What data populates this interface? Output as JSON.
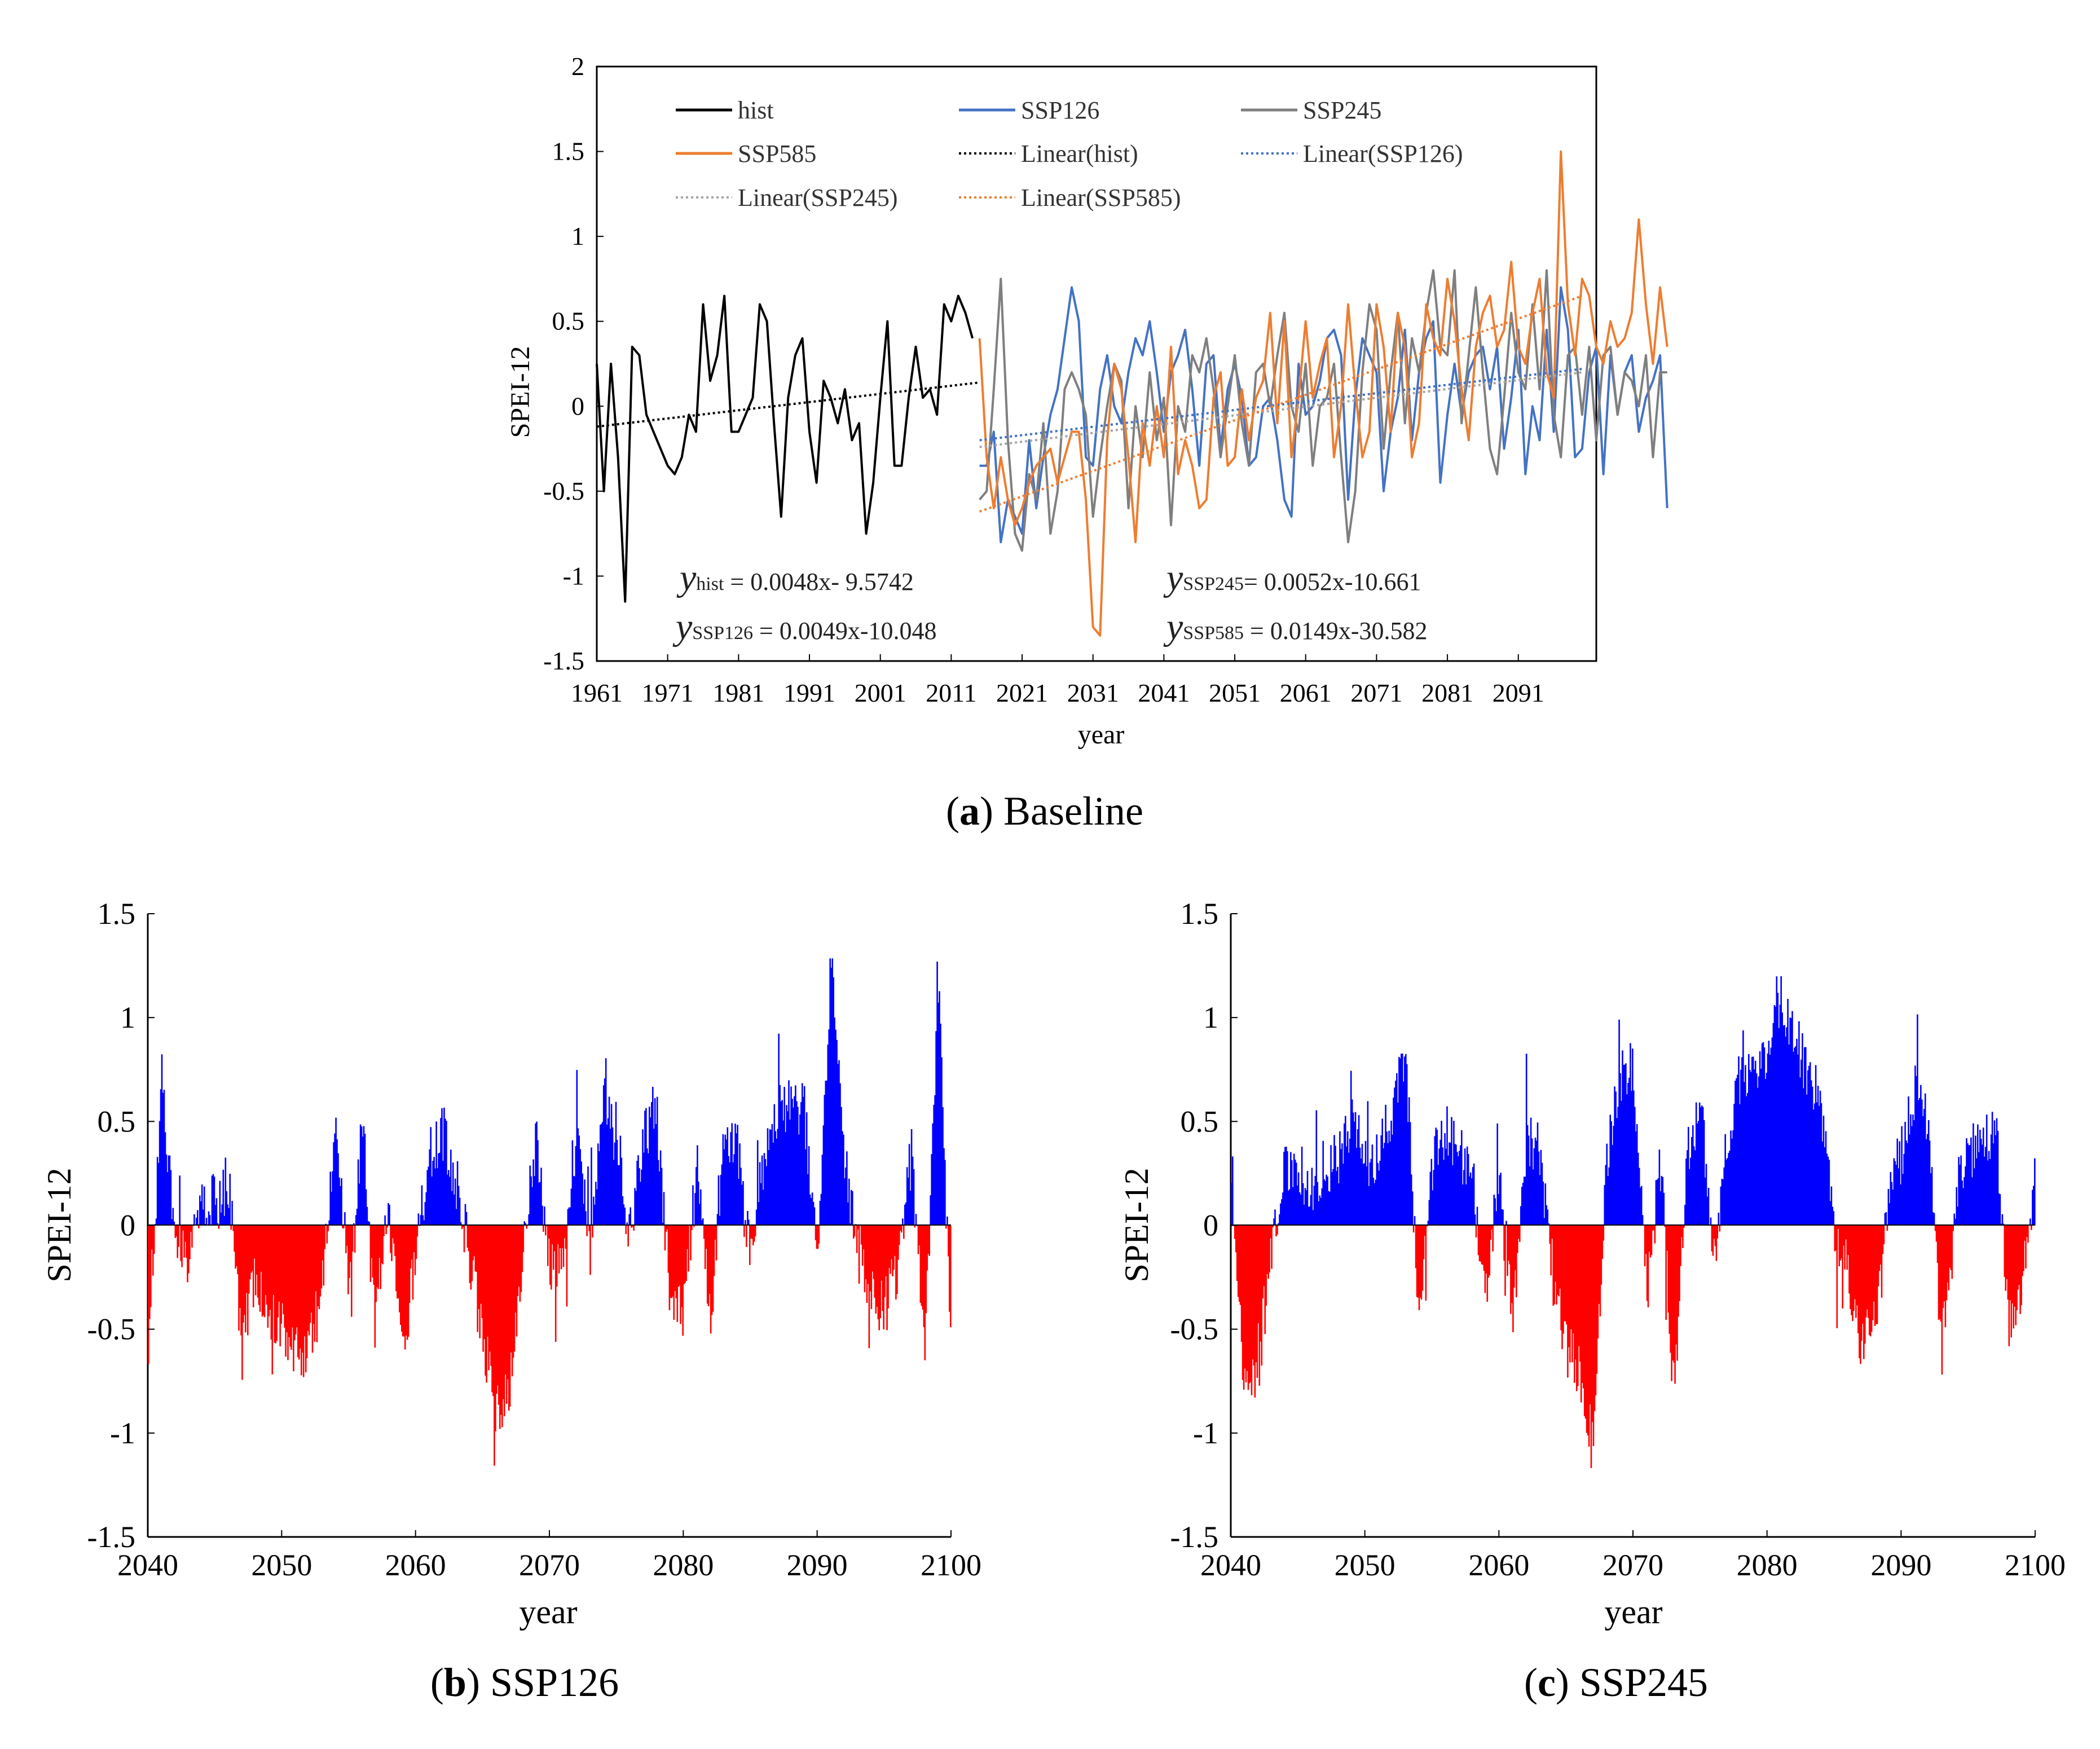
{
  "chart_data": [
    {
      "id": "a",
      "type": "line",
      "caption_letter": "a",
      "caption_text": "Baseline",
      "xlabel": "year",
      "ylabel": "SPEI-12",
      "xlim": [
        1961,
        2100
      ],
      "ylim": [
        -1.5,
        2
      ],
      "yticks": [
        "2",
        "1.5",
        "1",
        "0.5",
        "0",
        "-0.5",
        "-1",
        "-1.5"
      ],
      "xticks": [
        "1961",
        "1971",
        "1981",
        "1991",
        "2001",
        "2011",
        "2021",
        "2031",
        "2041",
        "2051",
        "2061",
        "2071",
        "2081",
        "2091"
      ],
      "legend": [
        {
          "label": "hist",
          "color": "#000000",
          "style": "solid"
        },
        {
          "label": "SSP126",
          "color": "#4472C4",
          "style": "solid"
        },
        {
          "label": "SSP245",
          "color": "#7F7F7F",
          "style": "solid"
        },
        {
          "label": "SSP585",
          "color": "#ED7D31",
          "style": "solid"
        },
        {
          "label": "Linear(hist)",
          "color": "#000000",
          "style": "dotted"
        },
        {
          "label": "Linear(SSP126)",
          "color": "#4472C4",
          "style": "dotted"
        },
        {
          "label": "Linear(SSP245)",
          "color": "#A5A5A5",
          "style": "dotted"
        },
        {
          "label": "Linear(SSP585)",
          "color": "#ED7D31",
          "style": "dotted"
        }
      ],
      "equations": [
        {
          "y": "y",
          "sub": "hist",
          "rhs": " = 0.0048x- 9.5742"
        },
        {
          "y": "y",
          "sub": "SSP245",
          "rhs": "= 0.0052x-10.661"
        },
        {
          "y": "y",
          "sub": "SSP126",
          "rhs": " = 0.0049x-10.048"
        },
        {
          "y": "y",
          "sub": "SSP585",
          "rhs": " = 0.0149x-30.582"
        }
      ],
      "series": [
        {
          "name": "hist",
          "color": "#000000",
          "x_start": 1961,
          "values": [
            0.25,
            -0.5,
            0.25,
            -0.3,
            -1.15,
            0.35,
            0.3,
            -0.05,
            -0.15,
            -0.25,
            -0.35,
            -0.4,
            -0.3,
            -0.05,
            -0.15,
            0.6,
            0.15,
            0.3,
            0.65,
            -0.15,
            -0.15,
            -0.05,
            0.05,
            0.6,
            0.5,
            -0.1,
            -0.65,
            0.05,
            0.3,
            0.4,
            -0.15,
            -0.45,
            0.15,
            0.05,
            -0.1,
            0.1,
            -0.2,
            -0.1,
            -0.75,
            -0.45,
            0.05,
            0.5,
            -0.35,
            -0.35,
            0.05,
            0.35,
            0.05,
            0.1,
            -0.05,
            0.6,
            0.5,
            0.65,
            0.55,
            0.4
          ]
        },
        {
          "name": "SSP126",
          "color": "#4472C4",
          "x_start": 2015,
          "values": [
            -0.35,
            -0.35,
            -0.15,
            -0.8,
            -0.55,
            -0.65,
            -0.75,
            -0.2,
            -0.6,
            -0.3,
            -0.05,
            0.1,
            0.4,
            0.7,
            0.5,
            -0.3,
            -0.35,
            0.1,
            0.3,
            0.0,
            -0.1,
            0.2,
            0.4,
            0.3,
            0.5,
            0.2,
            -0.15,
            0.2,
            0.3,
            0.45,
            0.1,
            -0.35,
            0.25,
            0.3,
            -0.25,
            0.1,
            0.25,
            0.05,
            -0.35,
            -0.3,
            0.0,
            0.05,
            -0.2,
            -0.55,
            -0.65,
            0.25,
            -0.05,
            0.0,
            0.15,
            0.4,
            0.45,
            0.3,
            -0.55,
            0.05,
            0.4,
            0.3,
            0.2,
            -0.5,
            -0.15,
            0.05,
            0.45,
            -0.2,
            0.2,
            0.4,
            0.5,
            -0.45,
            -0.05,
            0.25,
            -0.05,
            0.2,
            0.3,
            0.35,
            0.1,
            0.35,
            -0.25,
            0.05,
            0.45,
            -0.4,
            0.0,
            -0.2,
            0.45,
            -0.15,
            0.7,
            0.45,
            -0.3,
            -0.25,
            0.2,
            0.35,
            -0.4,
            0.3,
            -0.05,
            0.2,
            0.3,
            -0.15,
            0.05,
            0.15,
            0.3,
            -0.6
          ]
        },
        {
          "name": "SSP245",
          "color": "#7F7F7F",
          "x_start": 2015,
          "values": [
            -0.55,
            -0.5,
            0.1,
            0.75,
            -0.2,
            -0.75,
            -0.85,
            -0.4,
            -0.55,
            -0.1,
            -0.75,
            -0.5,
            0.1,
            0.2,
            0.1,
            -0.05,
            -0.65,
            -0.3,
            0.0,
            0.25,
            0.15,
            -0.6,
            0.0,
            -0.3,
            0.2,
            -0.2,
            0.05,
            -0.7,
            0.0,
            -0.15,
            0.3,
            0.2,
            0.4,
            0.1,
            -0.3,
            0.0,
            0.3,
            -0.1,
            -0.35,
            0.2,
            0.25,
            0.0,
            0.3,
            0.55,
            0.0,
            -0.15,
            0.25,
            -0.35,
            0.0,
            0.05,
            0.25,
            -0.3,
            -0.8,
            -0.5,
            0.2,
            0.6,
            0.45,
            -0.25,
            0.2,
            0.55,
            -0.1,
            0.4,
            0.2,
            0.55,
            0.8,
            0.35,
            0.3,
            0.8,
            -0.1,
            0.3,
            0.7,
            0.2,
            -0.25,
            -0.4,
            0.05,
            0.55,
            0.2,
            0.1,
            0.6,
            0.1,
            0.8,
            -0.05,
            -0.3,
            0.3,
            0.35,
            -0.05,
            0.35,
            -0.2,
            0.3,
            0.35,
            -0.05,
            0.2,
            0.15,
            0.0,
            0.3,
            -0.3,
            0.2,
            0.2
          ]
        },
        {
          "name": "SSP585",
          "color": "#ED7D31",
          "x_start": 2015,
          "values": [
            0.4,
            -0.3,
            -0.6,
            -0.3,
            -0.55,
            -0.7,
            -0.6,
            -0.45,
            -0.35,
            -0.3,
            -0.25,
            -0.45,
            -0.3,
            -0.15,
            -0.15,
            -0.55,
            -1.3,
            -1.35,
            -0.2,
            0.25,
            0.1,
            -0.3,
            -0.8,
            -0.1,
            -0.35,
            0.0,
            -0.3,
            0.35,
            -0.4,
            -0.2,
            -0.35,
            -0.6,
            -0.55,
            0.05,
            0.2,
            -0.35,
            -0.3,
            0.1,
            -0.2,
            0.05,
            0.15,
            0.55,
            -0.1,
            0.5,
            -0.3,
            0.05,
            0.5,
            0.05,
            0.25,
            0.4,
            -0.3,
            0.0,
            0.6,
            0.1,
            -0.3,
            -0.15,
            0.6,
            0.35,
            -0.15,
            0.55,
            0.35,
            -0.3,
            -0.1,
            0.6,
            0.4,
            0.3,
            0.75,
            0.5,
            0.1,
            -0.2,
            0.35,
            0.55,
            0.65,
            0.35,
            0.45,
            0.85,
            0.35,
            0.25,
            0.55,
            0.75,
            0.2,
            0.05,
            1.5,
            0.6,
            0.3,
            0.75,
            0.65,
            0.35,
            0.25,
            0.5,
            0.35,
            0.4,
            0.55,
            1.1,
            0.6,
            0.25,
            0.7,
            0.35
          ]
        },
        {
          "name": "Linear(hist)",
          "color": "#000000",
          "style": "dotted",
          "x0": 1961,
          "y0": -0.12,
          "x1": 2015,
          "y1": 0.14
        },
        {
          "name": "Linear(SSP126)",
          "color": "#4472C4",
          "style": "dotted",
          "x0": 2015,
          "y0": -0.2,
          "x1": 2100,
          "y1": 0.22
        },
        {
          "name": "Linear(SSP245)",
          "color": "#A5A5A5",
          "style": "dotted",
          "x0": 2015,
          "y0": -0.24,
          "x1": 2100,
          "y1": 0.2
        },
        {
          "name": "Linear(SSP585)",
          "color": "#ED7D31",
          "style": "dotted",
          "x0": 2015,
          "y0": -0.62,
          "x1": 2100,
          "y1": 0.65
        }
      ]
    },
    {
      "id": "b",
      "type": "bar",
      "caption_letter": "b",
      "caption_text": "SSP126",
      "xlabel": "year",
      "ylabel": "SPEI-12",
      "xlim": [
        2040,
        2100
      ],
      "ylim": [
        -1.5,
        1.5
      ],
      "yticks": [
        "1.5",
        "1",
        "0.5",
        "0",
        "-0.5",
        "-1",
        "-1.5"
      ],
      "xticks": [
        "2040",
        "2050",
        "2060",
        "2070",
        "2080",
        "2090",
        "2100"
      ],
      "positive_color": "#0000FF",
      "negative_color": "#FF0000",
      "x_start": 2040,
      "year_means": [
        -0.55,
        0.65,
        0.0,
        -0.2,
        0.15,
        0.1,
        0.15,
        -0.55,
        -0.25,
        -0.45,
        -0.5,
        -0.6,
        -0.6,
        -0.3,
        0.55,
        -0.35,
        0.45,
        -0.35,
        0.05,
        -0.6,
        -0.15,
        0.35,
        0.45,
        0.2,
        -0.15,
        -0.55,
        -0.9,
        -0.8,
        -0.1,
        0.4,
        -0.2,
        -0.15,
        0.45,
        -0.1,
        0.65,
        0.35,
        -0.05,
        0.45,
        0.5,
        -0.35,
        -0.4,
        0.3,
        -0.45,
        0.5,
        0.35,
        -0.2,
        0.35,
        0.55,
        0.6,
        0.55,
        -0.2,
        1.3,
        0.3,
        -0.1,
        -0.35,
        -0.4,
        -0.2,
        0.35,
        -0.65,
        1.2,
        -0.7
      ]
    },
    {
      "id": "c",
      "type": "bar",
      "caption_letter": "c",
      "caption_text": "SSP245",
      "xlabel": "year",
      "ylabel": "SPEI-12",
      "xlim": [
        2040,
        2100
      ],
      "ylim": [
        -1.5,
        1.5
      ],
      "yticks": [
        "1.5",
        "1",
        "0.5",
        "0",
        "-0.5",
        "-1",
        "-1.5"
      ],
      "xticks": [
        "2040",
        "2050",
        "2060",
        "2070",
        "2080",
        "2090",
        "2100"
      ],
      "positive_color": "#0000FF",
      "negative_color": "#FF0000",
      "x_start": 2040,
      "year_means": [
        0.3,
        -0.8,
        -0.6,
        -0.1,
        0.25,
        0.3,
        0.15,
        0.3,
        0.3,
        0.5,
        0.3,
        0.35,
        0.55,
        0.85,
        -0.45,
        0.3,
        0.45,
        0.35,
        0.2,
        -0.3,
        0.3,
        -0.5,
        0.4,
        0.35,
        -0.25,
        -0.6,
        -0.7,
        -1.1,
        0.3,
        0.7,
        0.75,
        -0.35,
        0.3,
        -0.8,
        0.35,
        0.6,
        -0.15,
        0.4,
        0.75,
        0.75,
        0.85,
        1.1,
        0.9,
        0.75,
        0.6,
        -0.1,
        -0.2,
        -0.6,
        -0.45,
        0.15,
        0.35,
        0.65,
        0.45,
        -0.6,
        0.15,
        0.35,
        0.4,
        0.5,
        -0.45,
        -0.3,
        0.3
      ]
    }
  ]
}
